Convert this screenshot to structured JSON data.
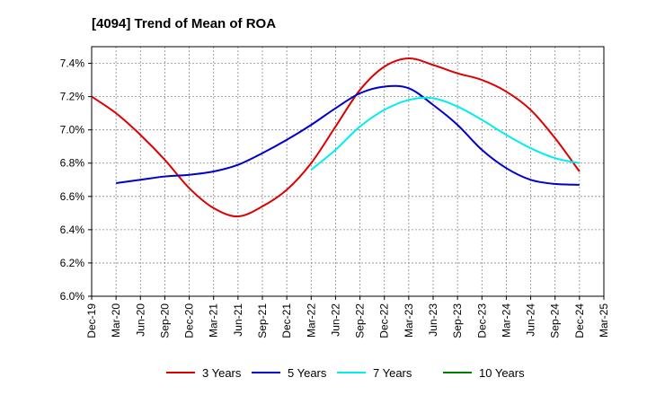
{
  "chart_data": {
    "type": "line",
    "title": "[4094]  Trend of Mean of ROA",
    "xlabel": "",
    "ylabel": "",
    "ylim": [
      6.0,
      7.5
    ],
    "y_ticks": [
      "6.0%",
      "6.2%",
      "6.4%",
      "6.6%",
      "6.8%",
      "7.0%",
      "7.2%",
      "7.4%"
    ],
    "y_tick_values": [
      6.0,
      6.2,
      6.4,
      6.6,
      6.8,
      7.0,
      7.2,
      7.4
    ],
    "categories": [
      "Dec-19",
      "Mar-20",
      "Jun-20",
      "Sep-20",
      "Dec-20",
      "Mar-21",
      "Jun-21",
      "Sep-21",
      "Dec-21",
      "Mar-22",
      "Jun-22",
      "Sep-22",
      "Dec-22",
      "Mar-23",
      "Jun-23",
      "Sep-23",
      "Dec-23",
      "Mar-24",
      "Jun-24",
      "Sep-24",
      "Dec-24",
      "Mar-25"
    ],
    "grid": true,
    "legend_position": "bottom",
    "series": [
      {
        "name": "3 Years",
        "color": "#dd0000",
        "values": [
          7.2,
          7.1,
          6.97,
          6.82,
          6.65,
          6.53,
          6.48,
          6.54,
          6.64,
          6.8,
          7.02,
          7.24,
          7.38,
          7.43,
          7.39,
          7.34,
          7.3,
          7.23,
          7.12,
          6.95,
          6.75,
          null
        ]
      },
      {
        "name": "5 Years",
        "color": "#0000cc",
        "values": [
          null,
          6.68,
          6.7,
          6.72,
          6.73,
          6.75,
          6.79,
          6.86,
          6.94,
          7.03,
          7.13,
          7.22,
          7.26,
          7.25,
          7.15,
          7.03,
          6.88,
          6.77,
          6.7,
          6.675,
          6.67,
          null
        ]
      },
      {
        "name": "7 Years",
        "color": "#00eeee",
        "values": [
          null,
          null,
          null,
          null,
          null,
          null,
          null,
          null,
          null,
          6.76,
          6.88,
          7.02,
          7.12,
          7.18,
          7.19,
          7.14,
          7.06,
          6.97,
          6.89,
          6.83,
          6.8,
          null
        ]
      },
      {
        "name": "10 Years",
        "color": "#008000",
        "values": [
          null,
          null,
          null,
          null,
          null,
          null,
          null,
          null,
          null,
          null,
          null,
          null,
          null,
          null,
          null,
          null,
          null,
          null,
          null,
          null,
          null,
          null
        ]
      }
    ]
  }
}
